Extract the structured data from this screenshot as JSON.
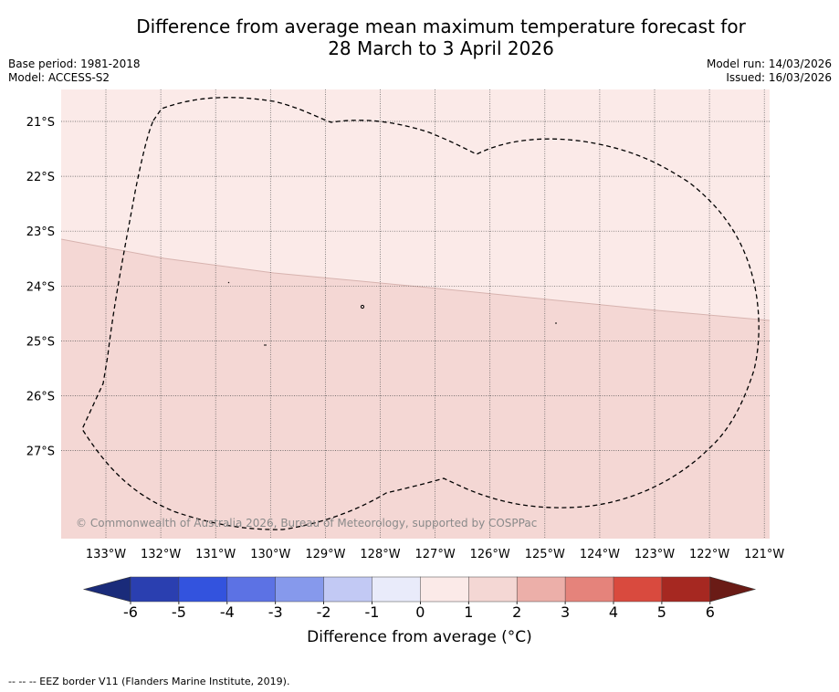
{
  "title": {
    "line1": "Difference from average mean maximum temperature forecast for",
    "line2": "28 March to 3 April 2026"
  },
  "meta": {
    "base_period": "Base period: 1981-2018",
    "model": "Model: ACCESS-S2",
    "model_run": "Model run: 14/03/2026",
    "issued": "Issued: 16/03/2026"
  },
  "map": {
    "lon_labels": [
      "133°W",
      "132°W",
      "131°W",
      "130°W",
      "129°W",
      "128°W",
      "127°W",
      "126°W",
      "125°W",
      "124°W",
      "123°W",
      "122°W",
      "121°W"
    ],
    "lat_labels": [
      "21°S",
      "22°S",
      "23°S",
      "24°S",
      "25°S",
      "26°S",
      "27°S"
    ],
    "copyright": "© Commonwealth of Australia 2026, Bureau of Meteorology, supported by COSPPac",
    "region_colors": {
      "zero_to_one": "#fbeae8",
      "one_to_two": "#f4d7d4"
    }
  },
  "colorbar": {
    "ticks": [
      "-6",
      "-5",
      "-4",
      "-3",
      "-2",
      "-1",
      "0",
      "1",
      "2",
      "3",
      "4",
      "5",
      "6"
    ],
    "colors": [
      "#1a2b7a",
      "#2a3fb0",
      "#3353de",
      "#5c72e4",
      "#8699ec",
      "#c2c9f4",
      "#e9ebfa",
      "#fbeae8",
      "#f4d7d4",
      "#ecafa9",
      "#e5837b",
      "#d94a3e",
      "#a62821",
      "#6a1b16"
    ],
    "label": "Difference from average (°C)"
  },
  "footnote": "--  --  -- EEZ border V11 (Flanders Marine Institute, 2019)."
}
